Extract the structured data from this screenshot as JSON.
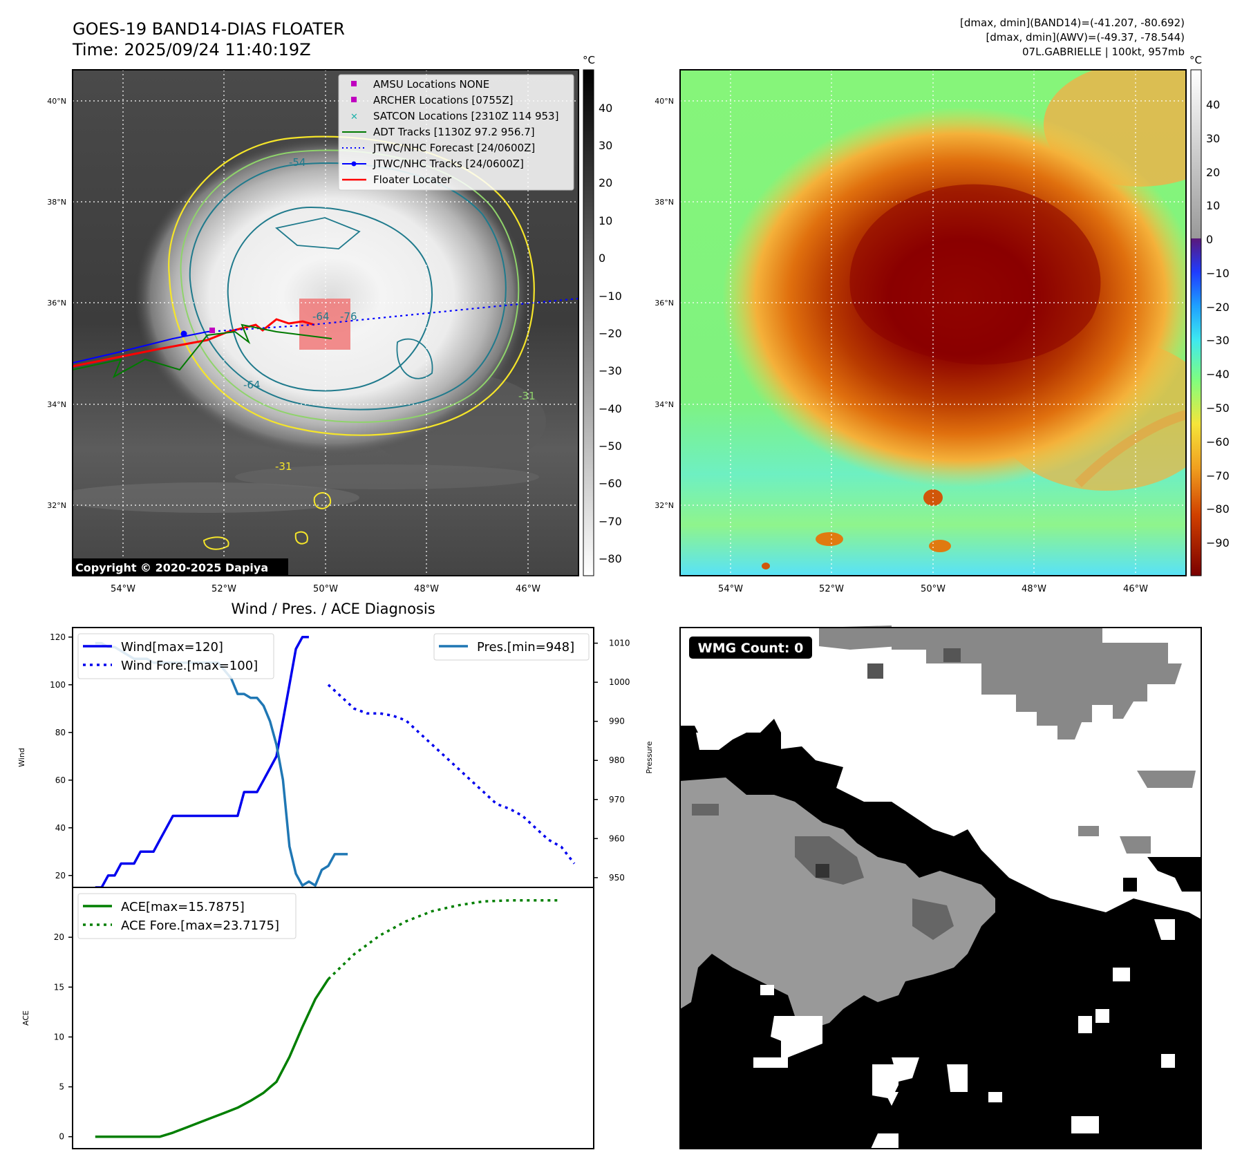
{
  "header": {
    "title_line1": "GOES-19 BAND14-DIAS FLOATER",
    "title_line2": "Time: 2025/09/24 11:40:19Z",
    "info_line1": "[dmax, dmin](BAND14)=(-41.207, -80.692)",
    "info_line2": "[dmax, dmin](AWV)=(-49.37, -78.544)",
    "info_line3": "07L.GABRIELLE | 100kt, 957mb"
  },
  "ir_panel": {
    "lat_labels": [
      "40°N",
      "38°N",
      "36°N",
      "34°N",
      "32°N"
    ],
    "lon_labels": [
      "54°W",
      "52°W",
      "50°W",
      "48°W",
      "46°W"
    ],
    "legend": [
      {
        "marker": "square",
        "color": "#c000c0",
        "label": "AMSU Locations NONE"
      },
      {
        "marker": "square",
        "color": "#c000c0",
        "label": "ARCHER Locations [0755Z]"
      },
      {
        "marker": "x",
        "color": "#20b2aa",
        "label": "SATCON Locations [2310Z 114 953]"
      },
      {
        "marker": "line",
        "color": "#007a00",
        "label": "ADT Tracks [1130Z 97.2 956.7]"
      },
      {
        "marker": "dotted",
        "color": "#0000ff",
        "label": "JTWC/NHC Forecast [24/0600Z]"
      },
      {
        "marker": "line-dot",
        "color": "#0000ff",
        "label": "JTWC/NHC Tracks [24/0600Z]"
      },
      {
        "marker": "line",
        "color": "#ff0000",
        "label": "Floater Locater"
      }
    ],
    "contour_labels": [
      "-64",
      "-64",
      "-76",
      "-31",
      "-31",
      "-54"
    ],
    "copyright": "Copyright © 2020-2025 Dapiya",
    "colorbar_unit": "°C",
    "colorbar_ticks": [
      "40",
      "30",
      "20",
      "10",
      "0",
      "−10",
      "−20",
      "−30",
      "−40",
      "−50",
      "−60",
      "−70",
      "−80"
    ],
    "colors": {
      "gray_dark": "#3a3a3a",
      "gray_light": "#f4f4f4",
      "contour_yellow": "#f5e52a",
      "contour_green": "#8fd36b",
      "contour_teal": "#1f7a8c"
    }
  },
  "awv_panel": {
    "lat_labels": [
      "40°N",
      "38°N",
      "36°N",
      "34°N",
      "32°N"
    ],
    "lon_labels": [
      "54°W",
      "52°W",
      "50°W",
      "48°W",
      "46°W"
    ],
    "colorbar_unit": "°C",
    "colorbar_ticks": [
      "40",
      "30",
      "20",
      "10",
      "0",
      "−10",
      "−20",
      "−30",
      "−40",
      "−50",
      "−60",
      "−70",
      "−80",
      "−90"
    ],
    "colors": {
      "core": "#8b0000",
      "ring": "#e07a10",
      "outer": "#f5c23a",
      "env": "#7fff7f",
      "dry": "#5ae6ff"
    }
  },
  "diagnosis": {
    "title": "Wind / Pres. / ACE Diagnosis",
    "wind_axis_label": "Wind",
    "pressure_axis_label": "Pressure",
    "ace_axis_label": "ACE",
    "wind_legend": "Wind[max=120]",
    "wind_fore_legend": "Wind Fore.[max=100]",
    "pres_legend": "Pres.[min=948]",
    "ace_legend": "ACE[max=15.7875]",
    "ace_fore_legend": "ACE Fore.[max=23.7175]",
    "colors": {
      "wind": "#0000ee",
      "pressure": "#1f77b4",
      "ace": "#007f00"
    }
  },
  "wmg": {
    "label": "WMG Count: 0"
  },
  "chart_data": [
    {
      "type": "line",
      "title": "Wind / Pres. / ACE Diagnosis",
      "ylabel": "Wind",
      "ylim": [
        15,
        124
      ],
      "y2label": "Pressure",
      "y2lim": [
        947.5,
        1014
      ],
      "yticks": [
        20,
        40,
        60,
        80,
        100,
        120
      ],
      "y2ticks": [
        950,
        960,
        970,
        980,
        990,
        1000,
        1010
      ],
      "series": [
        {
          "name": "Wind[max=120]",
          "style": "solid",
          "axis": "left",
          "x": [
            0,
            1,
            2,
            3,
            4,
            5,
            6,
            7,
            8,
            9,
            10,
            11,
            12,
            13,
            14,
            15,
            16,
            17,
            18,
            19,
            20,
            21,
            22,
            23,
            24,
            25,
            26,
            27,
            28,
            29,
            30,
            31,
            32,
            33
          ],
          "values": [
            15,
            15,
            20,
            20,
            25,
            25,
            25,
            30,
            30,
            30,
            35,
            40,
            45,
            45,
            45,
            45,
            45,
            45,
            45,
            45,
            45,
            45,
            45,
            55,
            55,
            55,
            60,
            65,
            70,
            85,
            100,
            115,
            120,
            120
          ]
        },
        {
          "name": "Wind Fore.[max=100]",
          "style": "dotted",
          "axis": "left",
          "x": [
            36,
            38,
            40,
            42,
            44,
            46,
            48,
            50,
            52,
            54,
            56,
            58,
            60,
            62,
            64,
            66,
            68,
            70,
            72,
            74
          ],
          "values": [
            100,
            95,
            90,
            88,
            88,
            87,
            85,
            80,
            75,
            70,
            65,
            60,
            55,
            50,
            48,
            45,
            40,
            35,
            32,
            25
          ]
        },
        {
          "name": "Pres.[min=948]",
          "style": "solid",
          "axis": "right",
          "x": [
            0,
            1,
            2,
            3,
            4,
            5,
            6,
            7,
            8,
            9,
            10,
            11,
            12,
            13,
            14,
            15,
            16,
            17,
            18,
            19,
            20,
            21,
            22,
            23,
            24,
            25,
            26,
            27,
            28,
            29,
            30,
            31,
            32,
            33,
            34,
            35,
            36,
            37,
            38,
            39
          ],
          "values": [
            1010,
            1010,
            1009,
            1009,
            1008,
            1007,
            1006,
            1006,
            1006,
            1005,
            1005,
            1005,
            1005,
            1005,
            1005,
            1005,
            1005,
            1005,
            1005,
            1005,
            1003,
            1001,
            997,
            997,
            996,
            996,
            994,
            990,
            984,
            975,
            958,
            951,
            948,
            949,
            948,
            952,
            953,
            956,
            956,
            956
          ]
        }
      ]
    },
    {
      "type": "line",
      "ylabel": "ACE",
      "ylim": [
        -1.2,
        25
      ],
      "yticks": [
        0,
        5,
        10,
        15,
        20
      ],
      "series": [
        {
          "name": "ACE[max=15.7875]",
          "style": "solid",
          "x": [
            0,
            2,
            4,
            6,
            8,
            10,
            12,
            14,
            16,
            18,
            20,
            22,
            24,
            26,
            28,
            30,
            32,
            34,
            36
          ],
          "values": [
            0,
            0,
            0,
            0,
            0,
            0,
            0.4,
            0.9,
            1.4,
            1.9,
            2.4,
            2.9,
            3.6,
            4.4,
            5.5,
            8,
            11,
            13.8,
            15.8
          ]
        },
        {
          "name": "ACE Fore.[max=23.7175]",
          "style": "dotted",
          "x": [
            36,
            40,
            44,
            48,
            52,
            56,
            60,
            64,
            68,
            72
          ],
          "values": [
            15.8,
            18.3,
            20.2,
            21.6,
            22.6,
            23.2,
            23.6,
            23.7,
            23.7,
            23.7
          ]
        }
      ]
    }
  ]
}
